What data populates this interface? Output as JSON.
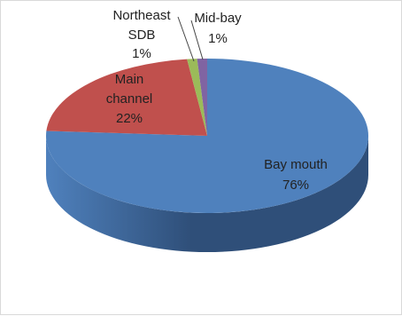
{
  "chart_data": {
    "type": "pie",
    "title": "",
    "style": "3d-pie",
    "legend": "none",
    "slices": [
      {
        "label": "Bay mouth",
        "value": 76,
        "value_label": "76%",
        "color": "#4F81BD",
        "side_color": "#2F4F79"
      },
      {
        "label": "Main channel",
        "value": 22,
        "value_label": "22%",
        "color": "#C0504D",
        "side_color": "#7D2E2C"
      },
      {
        "label": "Northeast SDB",
        "value": 1,
        "value_label": "1%",
        "color": "#9BBB59",
        "side_color": "#627A35"
      },
      {
        "label": "Mid-bay",
        "value": 1,
        "value_label": "1%",
        "color": "#8064A2",
        "side_color": "#4E3B66"
      }
    ],
    "data_labels": [
      {
        "lines": [
          "Bay mouth",
          "76%"
        ]
      },
      {
        "lines": [
          "Main",
          "channel",
          "22%"
        ]
      },
      {
        "lines": [
          "Northeast",
          "SDB",
          "1%"
        ]
      },
      {
        "lines": [
          "Mid-bay",
          "1%"
        ]
      }
    ]
  }
}
